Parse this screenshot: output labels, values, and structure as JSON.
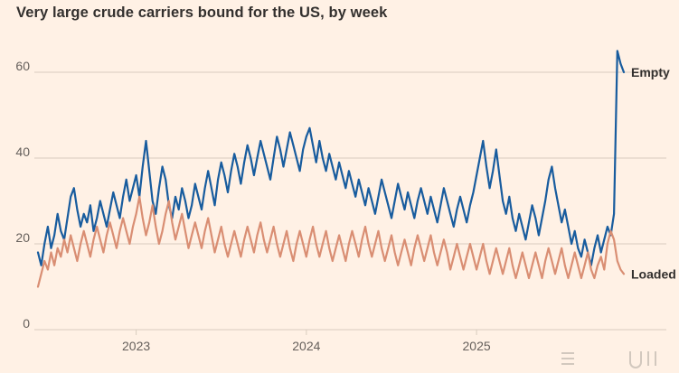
{
  "page": {
    "background_color": "#FFF1E5"
  },
  "chart": {
    "title": "Very large crude carriers bound for the US, by week",
    "title_color": "#33302E",
    "gridline_color": "#D8CCBE",
    "axis_text_color": "#66605C"
  },
  "chart_data": {
    "type": "line",
    "title": "Very large crude carriers bound for the US, by week",
    "x_unit": "week",
    "x_note": "weekly observations from mid-2022 to late 2025",
    "grid": "horizontal",
    "legend_position": "end-of-line",
    "y_axis": {
      "min": 0,
      "max": 66,
      "ticks": [
        0,
        20,
        40,
        60
      ]
    },
    "x_ticks": [
      {
        "label": "2023",
        "index": 30
      },
      {
        "label": "2024",
        "index": 82
      },
      {
        "label": "2025",
        "index": 134
      }
    ],
    "series": [
      {
        "name": "Empty",
        "color": "#185C9E",
        "values": [
          18,
          15,
          20,
          24,
          19,
          22,
          27,
          23,
          21,
          26,
          31,
          33,
          28,
          24,
          27,
          25,
          29,
          23,
          26,
          30,
          27,
          24,
          28,
          32,
          29,
          26,
          31,
          35,
          30,
          33,
          36,
          31,
          38,
          44,
          37,
          30,
          27,
          33,
          38,
          35,
          29,
          26,
          31,
          28,
          33,
          30,
          26,
          29,
          34,
          31,
          28,
          33,
          37,
          33,
          29,
          35,
          39,
          36,
          32,
          37,
          41,
          38,
          34,
          39,
          43,
          40,
          36,
          40,
          44,
          41,
          38,
          35,
          40,
          45,
          42,
          38,
          42,
          46,
          43,
          40,
          37,
          42,
          45,
          47,
          43,
          39,
          44,
          40,
          37,
          41,
          38,
          35,
          39,
          36,
          33,
          37,
          34,
          31,
          35,
          32,
          29,
          33,
          30,
          27,
          31,
          35,
          32,
          29,
          26,
          30,
          34,
          31,
          28,
          32,
          29,
          26,
          30,
          33,
          30,
          27,
          31,
          28,
          25,
          29,
          33,
          30,
          27,
          24,
          28,
          31,
          28,
          25,
          29,
          32,
          36,
          40,
          44,
          38,
          33,
          37,
          42,
          36,
          30,
          27,
          31,
          26,
          23,
          27,
          24,
          21,
          25,
          29,
          26,
          22,
          26,
          30,
          35,
          38,
          33,
          29,
          25,
          28,
          24,
          20,
          23,
          19,
          17,
          21,
          18,
          15,
          19,
          22,
          18,
          21,
          24,
          22,
          27,
          65,
          62,
          60
        ]
      },
      {
        "name": "Loaded",
        "color": "#D98E73",
        "values": [
          10,
          13,
          16,
          14,
          18,
          15,
          19,
          17,
          21,
          18,
          22,
          19,
          16,
          20,
          23,
          20,
          17,
          21,
          24,
          21,
          18,
          22,
          25,
          22,
          19,
          23,
          26,
          23,
          20,
          24,
          27,
          31,
          26,
          22,
          25,
          29,
          24,
          20,
          23,
          27,
          30,
          25,
          21,
          24,
          27,
          23,
          19,
          22,
          25,
          22,
          19,
          23,
          26,
          22,
          18,
          21,
          24,
          20,
          17,
          20,
          23,
          20,
          17,
          21,
          24,
          21,
          18,
          22,
          25,
          21,
          18,
          21,
          24,
          20,
          17,
          20,
          23,
          19,
          16,
          20,
          23,
          20,
          17,
          21,
          24,
          20,
          17,
          20,
          23,
          19,
          16,
          19,
          22,
          19,
          16,
          20,
          23,
          20,
          17,
          21,
          24,
          20,
          17,
          20,
          23,
          19,
          16,
          19,
          22,
          18,
          15,
          18,
          21,
          18,
          15,
          19,
          22,
          19,
          16,
          19,
          22,
          18,
          15,
          18,
          21,
          18,
          14,
          17,
          20,
          17,
          14,
          17,
          20,
          17,
          14,
          17,
          20,
          16,
          13,
          16,
          19,
          16,
          13,
          16,
          19,
          15,
          12,
          15,
          18,
          15,
          12,
          15,
          18,
          15,
          12,
          16,
          19,
          16,
          13,
          16,
          19,
          15,
          12,
          15,
          18,
          15,
          12,
          15,
          18,
          14,
          12,
          15,
          17,
          14,
          20,
          23,
          21,
          16,
          14,
          13
        ]
      }
    ]
  }
}
